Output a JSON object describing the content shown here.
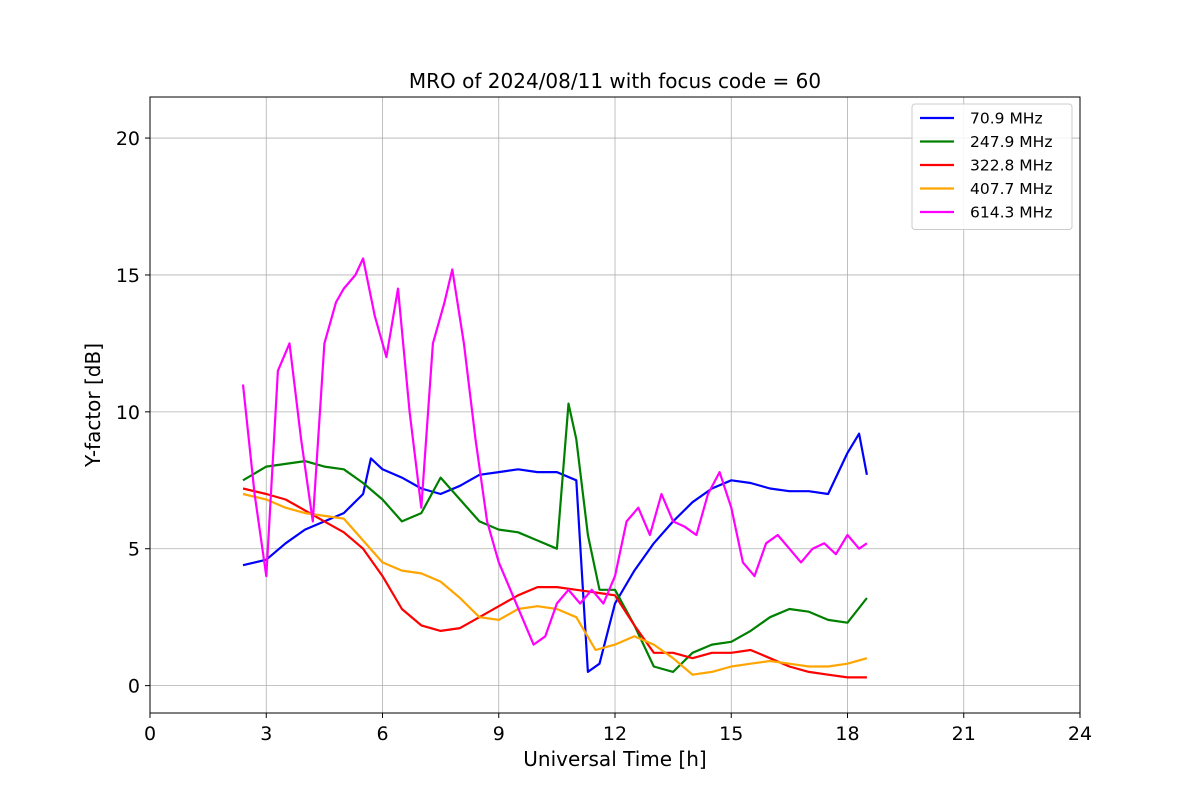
{
  "chart_data": {
    "type": "line",
    "title": "MRO of 2024/08/11 with focus code = 60",
    "xlabel": "Universal Time [h]",
    "ylabel": "Y-factor [dB]",
    "xlim": [
      0,
      24
    ],
    "ylim": [
      -1,
      21.5
    ],
    "xticks": [
      0,
      3,
      6,
      9,
      12,
      15,
      18,
      21,
      24
    ],
    "yticks": [
      0,
      5,
      10,
      15,
      20
    ],
    "grid": true,
    "legend_position": "top-right",
    "series": [
      {
        "name": "70.9 MHz",
        "color": "#0000ff",
        "x": [
          2.4,
          3.0,
          3.5,
          4.0,
          4.5,
          5.0,
          5.5,
          5.7,
          6.0,
          6.5,
          7.0,
          7.5,
          8.0,
          8.5,
          9.0,
          9.5,
          10.0,
          10.5,
          11.0,
          11.3,
          11.6,
          12.0,
          12.5,
          13.0,
          13.5,
          14.0,
          14.5,
          15.0,
          15.5,
          16.0,
          16.5,
          17.0,
          17.5,
          18.0,
          18.3,
          18.5
        ],
        "y": [
          4.4,
          4.6,
          5.2,
          5.7,
          6.0,
          6.3,
          7.0,
          8.3,
          7.9,
          7.6,
          7.2,
          7.0,
          7.3,
          7.7,
          7.8,
          7.9,
          7.8,
          7.8,
          7.5,
          0.5,
          0.8,
          3.0,
          4.2,
          5.2,
          6.0,
          6.7,
          7.2,
          7.5,
          7.4,
          7.2,
          7.1,
          7.1,
          7.0,
          8.5,
          9.2,
          7.7
        ]
      },
      {
        "name": "247.9 MHz",
        "color": "#008000",
        "x": [
          2.4,
          3.0,
          3.5,
          4.0,
          4.5,
          5.0,
          5.5,
          6.0,
          6.5,
          7.0,
          7.5,
          8.0,
          8.5,
          9.0,
          9.5,
          10.0,
          10.5,
          10.8,
          11.0,
          11.3,
          11.6,
          12.0,
          12.5,
          13.0,
          13.5,
          14.0,
          14.5,
          15.0,
          15.5,
          16.0,
          16.5,
          17.0,
          17.5,
          18.0,
          18.5
        ],
        "y": [
          7.5,
          8.0,
          8.1,
          8.2,
          8.0,
          7.9,
          7.4,
          6.8,
          6.0,
          6.3,
          7.6,
          6.8,
          6.0,
          5.7,
          5.6,
          5.3,
          5.0,
          10.3,
          9.0,
          5.5,
          3.5,
          3.5,
          2.2,
          0.7,
          0.5,
          1.2,
          1.5,
          1.6,
          2.0,
          2.5,
          2.8,
          2.7,
          2.4,
          2.3,
          3.2
        ]
      },
      {
        "name": "322.8 MHz",
        "color": "#ff0000",
        "x": [
          2.4,
          3.0,
          3.5,
          4.0,
          4.5,
          5.0,
          5.5,
          6.0,
          6.5,
          7.0,
          7.5,
          8.0,
          8.5,
          9.0,
          9.5,
          10.0,
          10.5,
          11.0,
          11.5,
          12.0,
          12.5,
          13.0,
          13.5,
          14.0,
          14.5,
          15.0,
          15.5,
          16.0,
          16.5,
          17.0,
          17.5,
          18.0,
          18.5
        ],
        "y": [
          7.2,
          7.0,
          6.8,
          6.4,
          6.0,
          5.6,
          5.0,
          4.0,
          2.8,
          2.2,
          2.0,
          2.1,
          2.5,
          2.9,
          3.3,
          3.6,
          3.6,
          3.5,
          3.4,
          3.3,
          2.2,
          1.2,
          1.2,
          1.0,
          1.2,
          1.2,
          1.3,
          1.0,
          0.7,
          0.5,
          0.4,
          0.3,
          0.3
        ]
      },
      {
        "name": "407.7 MHz",
        "color": "#ffa500",
        "x": [
          2.4,
          3.0,
          3.5,
          4.0,
          4.5,
          5.0,
          5.5,
          6.0,
          6.5,
          7.0,
          7.5,
          8.0,
          8.5,
          9.0,
          9.5,
          10.0,
          10.5,
          11.0,
          11.5,
          12.0,
          12.5,
          13.0,
          13.5,
          14.0,
          14.5,
          15.0,
          15.5,
          16.0,
          16.5,
          17.0,
          17.5,
          18.0,
          18.5
        ],
        "y": [
          7.0,
          6.8,
          6.5,
          6.3,
          6.2,
          6.1,
          5.3,
          4.5,
          4.2,
          4.1,
          3.8,
          3.2,
          2.5,
          2.4,
          2.8,
          2.9,
          2.8,
          2.5,
          1.3,
          1.5,
          1.8,
          1.5,
          1.0,
          0.4,
          0.5,
          0.7,
          0.8,
          0.9,
          0.8,
          0.7,
          0.7,
          0.8,
          1.0
        ]
      },
      {
        "name": "614.3 MHz",
        "color": "#ff00ff",
        "x": [
          2.4,
          2.7,
          3.0,
          3.3,
          3.6,
          3.9,
          4.2,
          4.5,
          4.8,
          5.0,
          5.3,
          5.5,
          5.8,
          6.1,
          6.4,
          6.7,
          7.0,
          7.3,
          7.6,
          7.8,
          8.1,
          8.4,
          8.7,
          9.0,
          9.3,
          9.6,
          9.9,
          10.2,
          10.5,
          10.8,
          11.1,
          11.4,
          11.7,
          12.0,
          12.3,
          12.6,
          12.9,
          13.2,
          13.5,
          13.8,
          14.1,
          14.4,
          14.7,
          15.0,
          15.3,
          15.6,
          15.9,
          16.2,
          16.5,
          16.8,
          17.1,
          17.4,
          17.7,
          18.0,
          18.3,
          18.5
        ],
        "y": [
          11.0,
          7.0,
          4.0,
          11.5,
          12.5,
          9.0,
          6.0,
          12.5,
          14.0,
          14.5,
          15.0,
          15.6,
          13.5,
          12.0,
          14.5,
          10.0,
          6.5,
          12.5,
          14.0,
          15.2,
          12.5,
          9.0,
          6.0,
          4.5,
          3.5,
          2.5,
          1.5,
          1.8,
          3.0,
          3.5,
          3.0,
          3.5,
          3.0,
          4.0,
          6.0,
          6.5,
          5.5,
          7.0,
          6.0,
          5.8,
          5.5,
          7.0,
          7.8,
          6.5,
          4.5,
          4.0,
          5.2,
          5.5,
          5.0,
          4.5,
          5.0,
          5.2,
          4.8,
          5.5,
          5.0,
          5.2
        ]
      }
    ]
  }
}
